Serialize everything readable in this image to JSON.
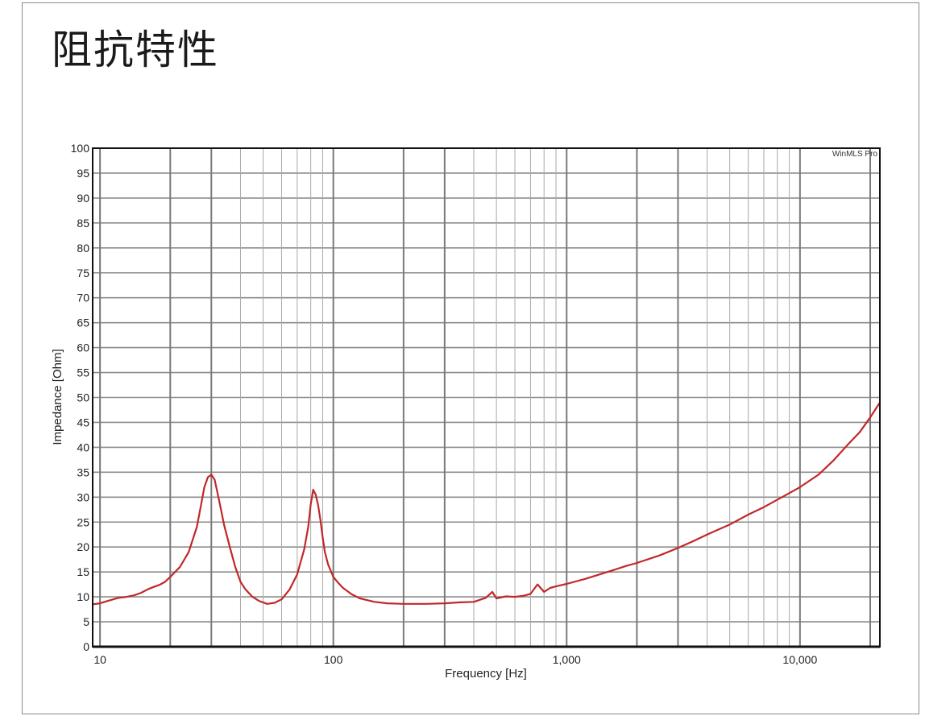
{
  "page": {
    "title": "阻抗特性"
  },
  "chart_data": {
    "type": "line",
    "title": "",
    "xlabel": "Frequency [Hz]",
    "ylabel": "Impedance [Ohm]",
    "watermark": "WinMLS Pro",
    "xscale": "log",
    "xlim": [
      9.3,
      22000
    ],
    "ylim": [
      0,
      100
    ],
    "grid": true,
    "x_tick_labels": [
      {
        "value": 10,
        "label": "10"
      },
      {
        "value": 100,
        "label": "100"
      },
      {
        "value": 1000,
        "label": "1,000"
      },
      {
        "value": 10000,
        "label": "10,000"
      }
    ],
    "y_ticks": [
      0,
      5,
      10,
      15,
      20,
      25,
      30,
      35,
      40,
      45,
      50,
      55,
      60,
      65,
      70,
      75,
      80,
      85,
      90,
      95,
      100
    ],
    "line_color": "#c0282a",
    "series": [
      {
        "x": [
          9.3,
          10,
          11,
          12,
          13,
          14,
          15,
          16,
          17,
          18,
          19,
          20,
          22,
          24,
          26,
          27,
          28,
          29,
          30,
          31,
          32,
          33,
          34,
          36,
          38,
          40,
          42,
          45,
          48,
          52,
          56,
          60,
          65,
          70,
          75,
          78,
          80,
          82,
          84,
          86,
          88,
          90,
          92,
          95,
          100,
          105,
          110,
          120,
          130,
          150,
          170,
          200,
          250,
          300,
          350,
          400,
          450,
          480,
          500,
          550,
          600,
          650,
          700,
          750,
          800,
          850,
          900,
          1000,
          1200,
          1500,
          1800,
          2000,
          2500,
          3000,
          3500,
          4000,
          5000,
          6000,
          7000,
          8000,
          9000,
          10000,
          12000,
          14000,
          16000,
          18000,
          20000,
          22000
        ],
        "y": [
          8.5,
          8.7,
          9.3,
          9.8,
          10.0,
          10.3,
          10.8,
          11.5,
          12.0,
          12.4,
          13.0,
          14.0,
          16.0,
          19.0,
          24.0,
          28.0,
          32.0,
          34.0,
          34.5,
          33.5,
          30.5,
          27.5,
          24.5,
          20.0,
          16.0,
          13.0,
          11.5,
          10.0,
          9.2,
          8.6,
          8.8,
          9.5,
          11.5,
          14.5,
          19.5,
          24.0,
          28.5,
          31.5,
          30.5,
          28.5,
          25.5,
          22.0,
          19.0,
          16.5,
          14.0,
          12.8,
          11.8,
          10.5,
          9.7,
          9.0,
          8.7,
          8.6,
          8.6,
          8.7,
          8.9,
          9.0,
          9.8,
          11.0,
          9.7,
          10.1,
          10.0,
          10.2,
          10.6,
          12.5,
          11.0,
          11.8,
          12.1,
          12.6,
          13.6,
          15.0,
          16.2,
          16.8,
          18.3,
          19.8,
          21.2,
          22.5,
          24.5,
          26.5,
          28.0,
          29.5,
          30.8,
          32.0,
          34.5,
          37.5,
          40.5,
          43.0,
          46.0,
          49.0
        ]
      }
    ]
  }
}
